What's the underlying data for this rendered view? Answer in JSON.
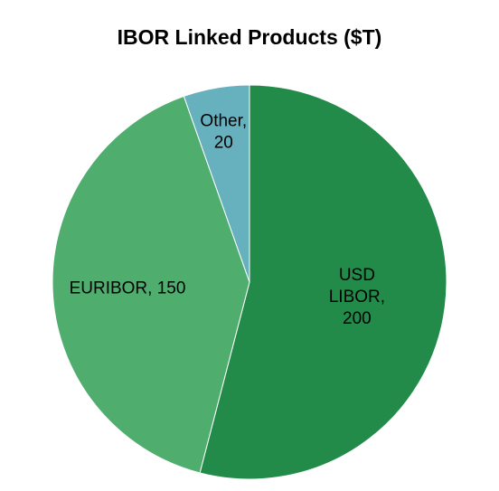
{
  "chart_data": {
    "type": "pie",
    "title": "IBOR Linked Products ($T)",
    "unit": "$T",
    "slices": [
      {
        "label": "USD LIBOR",
        "value": 200,
        "color": "#238b4a",
        "label_lines": [
          "USD",
          "LIBOR,",
          "200"
        ]
      },
      {
        "label": "EURIBOR",
        "value": 150,
        "color": "#4fad6e",
        "label_lines": [
          "EURIBOR, 150"
        ]
      },
      {
        "label": "Other",
        "value": 20,
        "color": "#67b1bf",
        "label_lines": [
          "Other,",
          "20"
        ]
      }
    ],
    "start_angle": "12 o'clock",
    "direction": "clockwise",
    "legend": "none"
  }
}
